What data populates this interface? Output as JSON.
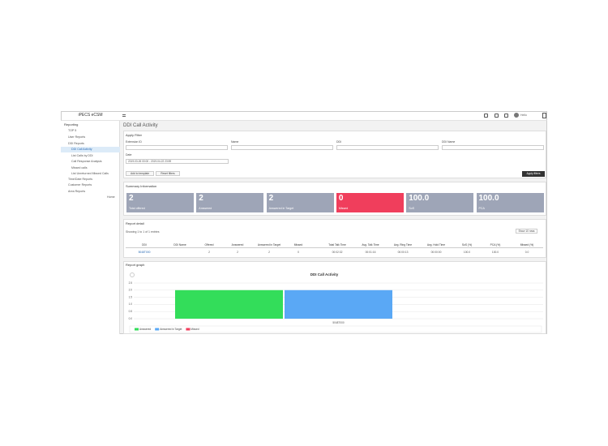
{
  "app": {
    "brand": "iPECS eCSM",
    "user": "Hello"
  },
  "sidebar": {
    "section": "Reporting",
    "items": [
      "TOP 5",
      "User Reports",
      "DDI Reports",
      "DDI Call Activity",
      "List Calls by DDI",
      "Call Response Analysis",
      "Missed calls",
      "List Unreturned Missed Calls",
      "Time/Date Reports",
      "Customer Reports",
      "Area Reports"
    ],
    "home": "Home"
  },
  "page_title": "DDI Call Activity",
  "filter": {
    "title": "Apply Filter",
    "fields": [
      "Extension ID",
      "Name",
      "DDI",
      "DDI Name"
    ],
    "date_label": "Date",
    "date_value": "2019-03-26 00:00 - 2019-04-22 23:59",
    "buttons": [
      "Add to template",
      "Reset filters"
    ],
    "apply": "Apply filters"
  },
  "summary": {
    "title": "Summary Information",
    "cards": [
      {
        "value": "2",
        "label": "Total offered"
      },
      {
        "value": "2",
        "label": "Answered"
      },
      {
        "value": "2",
        "label": "Answered in Target"
      },
      {
        "value": "0",
        "label": "Missed"
      },
      {
        "value": "100.0",
        "label": "SoS"
      },
      {
        "value": "100.0",
        "label": "PCA"
      }
    ]
  },
  "detail": {
    "title": "Report detail",
    "info": "Showing 1 to 1 of 1 entries",
    "rows_button": "Show 10 rows",
    "columns": [
      "DDI",
      "DDI Name",
      "Offered",
      "Answered",
      "Answered in Target",
      "Missed",
      "Total Talk Time",
      "Avg. Talk Time",
      "Avg. Ring Time",
      "Avg. Hold Time",
      "SoS (%)",
      "PCA (%)",
      "Missed (%)"
    ],
    "rows": [
      [
        "5048T000",
        "",
        "2",
        "2",
        "2",
        "0",
        "00:02:32",
        "00:01:16",
        "00:00:13",
        "00:00:00",
        "100.0",
        "100.0",
        "0.0"
      ]
    ]
  },
  "graph_panel": {
    "title": "Report graph"
  },
  "chart_data": {
    "type": "bar",
    "title": "DDI Call Activity",
    "categories": [
      "5048T000"
    ],
    "series": [
      {
        "name": "Answered",
        "color": "#33dd5a",
        "values": [
          2
        ]
      },
      {
        "name": "Answered in Target",
        "color": "#5aa8f5",
        "values": [
          2
        ]
      },
      {
        "name": "Missed",
        "color": "#f03e5c",
        "values": [
          0
        ]
      }
    ],
    "ylim": [
      0,
      2.5
    ],
    "yticks": [
      {
        "value": 0,
        "label": "0.0"
      },
      0.5,
      {
        "value": 1,
        "label": "1.0"
      },
      1.5,
      {
        "value": 2,
        "label": "2.0"
      },
      2.5
    ],
    "grid": true
  }
}
